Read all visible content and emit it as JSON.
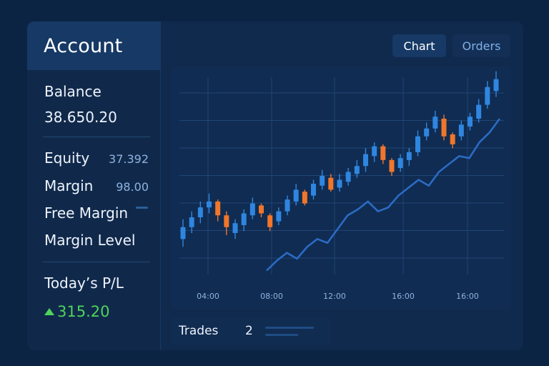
{
  "sidebar": {
    "title": "Account",
    "balance_label": "Balance",
    "balance_value": "38.650.20",
    "equity_label": "Equity",
    "equity_value": "37.392",
    "margin_label": "Margin",
    "margin_value": "98.00",
    "free_margin_label": "Free Margin",
    "margin_level_label": "Margin Level",
    "pl_label": "Today’s P/L",
    "pl_value": "315.20",
    "pl_icon": "triangle-up-icon"
  },
  "tabs": [
    {
      "label": "Chart",
      "active": true
    },
    {
      "label": "Orders",
      "active": false
    }
  ],
  "trades": {
    "label": "Trades",
    "count": "2"
  },
  "colors": {
    "up": "#2f86e0",
    "down": "#f0762b",
    "line": "#2b6bc4",
    "grid": "#1f4577",
    "profit": "#4fd35a"
  },
  "chart_data": {
    "type": "candlestick",
    "x_ticks": [
      "04:00",
      "08:00",
      "12:00",
      "16:00",
      "16:00"
    ],
    "y_range": [
      0,
      100
    ],
    "candles": [
      {
        "open": 18,
        "close": 24,
        "high": 28,
        "low": 14
      },
      {
        "open": 24,
        "close": 29,
        "high": 32,
        "low": 21
      },
      {
        "open": 29,
        "close": 34,
        "high": 37,
        "low": 26
      },
      {
        "open": 34,
        "close": 37,
        "high": 41,
        "low": 31
      },
      {
        "open": 37,
        "close": 30,
        "high": 38,
        "low": 27
      },
      {
        "open": 30,
        "close": 24,
        "high": 32,
        "low": 20
      },
      {
        "open": 21,
        "close": 26,
        "high": 28,
        "low": 18
      },
      {
        "open": 25,
        "close": 31,
        "high": 33,
        "low": 22
      },
      {
        "open": 30,
        "close": 36,
        "high": 39,
        "low": 28
      },
      {
        "open": 35,
        "close": 31,
        "high": 36,
        "low": 29
      },
      {
        "open": 30,
        "close": 24,
        "high": 31,
        "low": 22
      },
      {
        "open": 27,
        "close": 32,
        "high": 34,
        "low": 25
      },
      {
        "open": 32,
        "close": 38,
        "high": 40,
        "low": 30
      },
      {
        "open": 37,
        "close": 43,
        "high": 46,
        "low": 35
      },
      {
        "open": 42,
        "close": 36,
        "high": 43,
        "low": 35
      },
      {
        "open": 40,
        "close": 46,
        "high": 48,
        "low": 38
      },
      {
        "open": 45,
        "close": 50,
        "high": 53,
        "low": 43
      },
      {
        "open": 49,
        "close": 43,
        "high": 51,
        "low": 42
      },
      {
        "open": 44,
        "close": 48,
        "high": 51,
        "low": 42
      },
      {
        "open": 47,
        "close": 52,
        "high": 54,
        "low": 45
      },
      {
        "open": 51,
        "close": 55,
        "high": 58,
        "low": 49
      },
      {
        "open": 55,
        "close": 61,
        "high": 64,
        "low": 52
      },
      {
        "open": 60,
        "close": 65,
        "high": 67,
        "low": 57
      },
      {
        "open": 65,
        "close": 58,
        "high": 66,
        "low": 56
      },
      {
        "open": 58,
        "close": 52,
        "high": 59,
        "low": 50
      },
      {
        "open": 54,
        "close": 59,
        "high": 61,
        "low": 52
      },
      {
        "open": 58,
        "close": 62,
        "high": 64,
        "low": 55
      },
      {
        "open": 62,
        "close": 70,
        "high": 73,
        "low": 60
      },
      {
        "open": 70,
        "close": 74,
        "high": 77,
        "low": 68
      },
      {
        "open": 74,
        "close": 80,
        "high": 83,
        "low": 72
      },
      {
        "open": 79,
        "close": 70,
        "high": 81,
        "low": 68
      },
      {
        "open": 71,
        "close": 66,
        "high": 72,
        "low": 64
      },
      {
        "open": 70,
        "close": 76,
        "high": 78,
        "low": 68
      },
      {
        "open": 75,
        "close": 80,
        "high": 82,
        "low": 73
      },
      {
        "open": 79,
        "close": 86,
        "high": 89,
        "low": 77
      },
      {
        "open": 86,
        "close": 95,
        "high": 98,
        "low": 84
      },
      {
        "open": 93,
        "close": 99,
        "high": 103,
        "low": 90
      }
    ],
    "line": [
      2,
      7,
      11,
      8,
      14,
      18,
      16,
      23,
      30,
      33,
      37,
      32,
      34,
      40,
      44,
      48,
      45,
      52,
      56,
      60,
      59,
      67,
      72,
      79
    ]
  }
}
